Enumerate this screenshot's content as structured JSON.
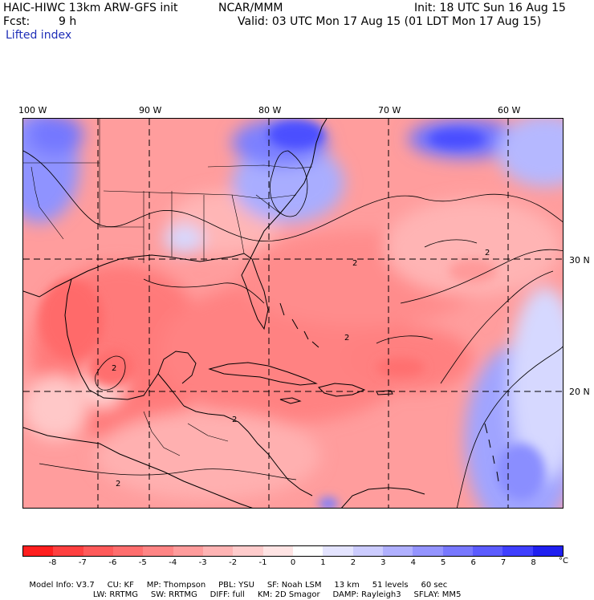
{
  "header": {
    "model_title": "HAIC-HIWC 13km ARW-GFS init",
    "org": "NCAR/MMM",
    "init": "Init: 18 UTC Sun 16 Aug 15",
    "fcst_label": "Fcst:",
    "fcst_value": "9 h",
    "valid": "Valid: 03 UTC Mon 17 Aug 15 (01 LDT Mon 17 Aug 15)",
    "field_name": "Lifted index"
  },
  "map": {
    "lon_labels": [
      "100 W",
      "90 W",
      "80 W",
      "70 W",
      "60 W"
    ],
    "lat_labels": [
      "30 N",
      "20 N"
    ],
    "contour_label": "2"
  },
  "colorbar": {
    "labels": [
      "-8",
      "-7",
      "-6",
      "-5",
      "-4",
      "-3",
      "-2",
      "-1",
      "0",
      "1",
      "2",
      "3",
      "4",
      "5",
      "6",
      "7",
      "8"
    ],
    "unit": "°C",
    "colors": [
      "#ff1f1f",
      "#ff4040",
      "#ff5a5a",
      "#ff6e6e",
      "#ff8585",
      "#ff9c9c",
      "#ffb4b4",
      "#ffcccc",
      "#ffe4e4",
      "#ffffff",
      "#e4e4ff",
      "#ccccff",
      "#b0b0ff",
      "#9494ff",
      "#7878ff",
      "#5c5cff",
      "#3f3fff",
      "#2020f0"
    ]
  },
  "model_info": {
    "line1": [
      "Model Info: V3.7",
      "CU: KF",
      "MP: Thompson",
      "PBL: YSU",
      "SF: Noah LSM",
      "13 km",
      "51 levels",
      "60 sec"
    ],
    "line2": [
      "LW: RRTMG",
      "SW: RRTMG",
      "DIFF: full",
      "KM: 2D Smagor",
      "DAMP: Rayleigh3",
      "SFLAY: MM5"
    ]
  }
}
